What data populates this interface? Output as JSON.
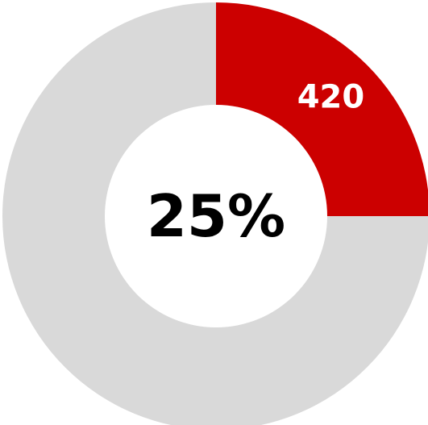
{
  "chart_data": {
    "type": "pie",
    "slices": [
      {
        "value": 420,
        "percent": 25,
        "color": "#CC0000",
        "data_label": "420"
      },
      {
        "value": 1260,
        "percent": 75,
        "color": "#D9D9D9",
        "data_label": ""
      }
    ],
    "center_label": "25%",
    "donut": true,
    "legend": "none"
  }
}
